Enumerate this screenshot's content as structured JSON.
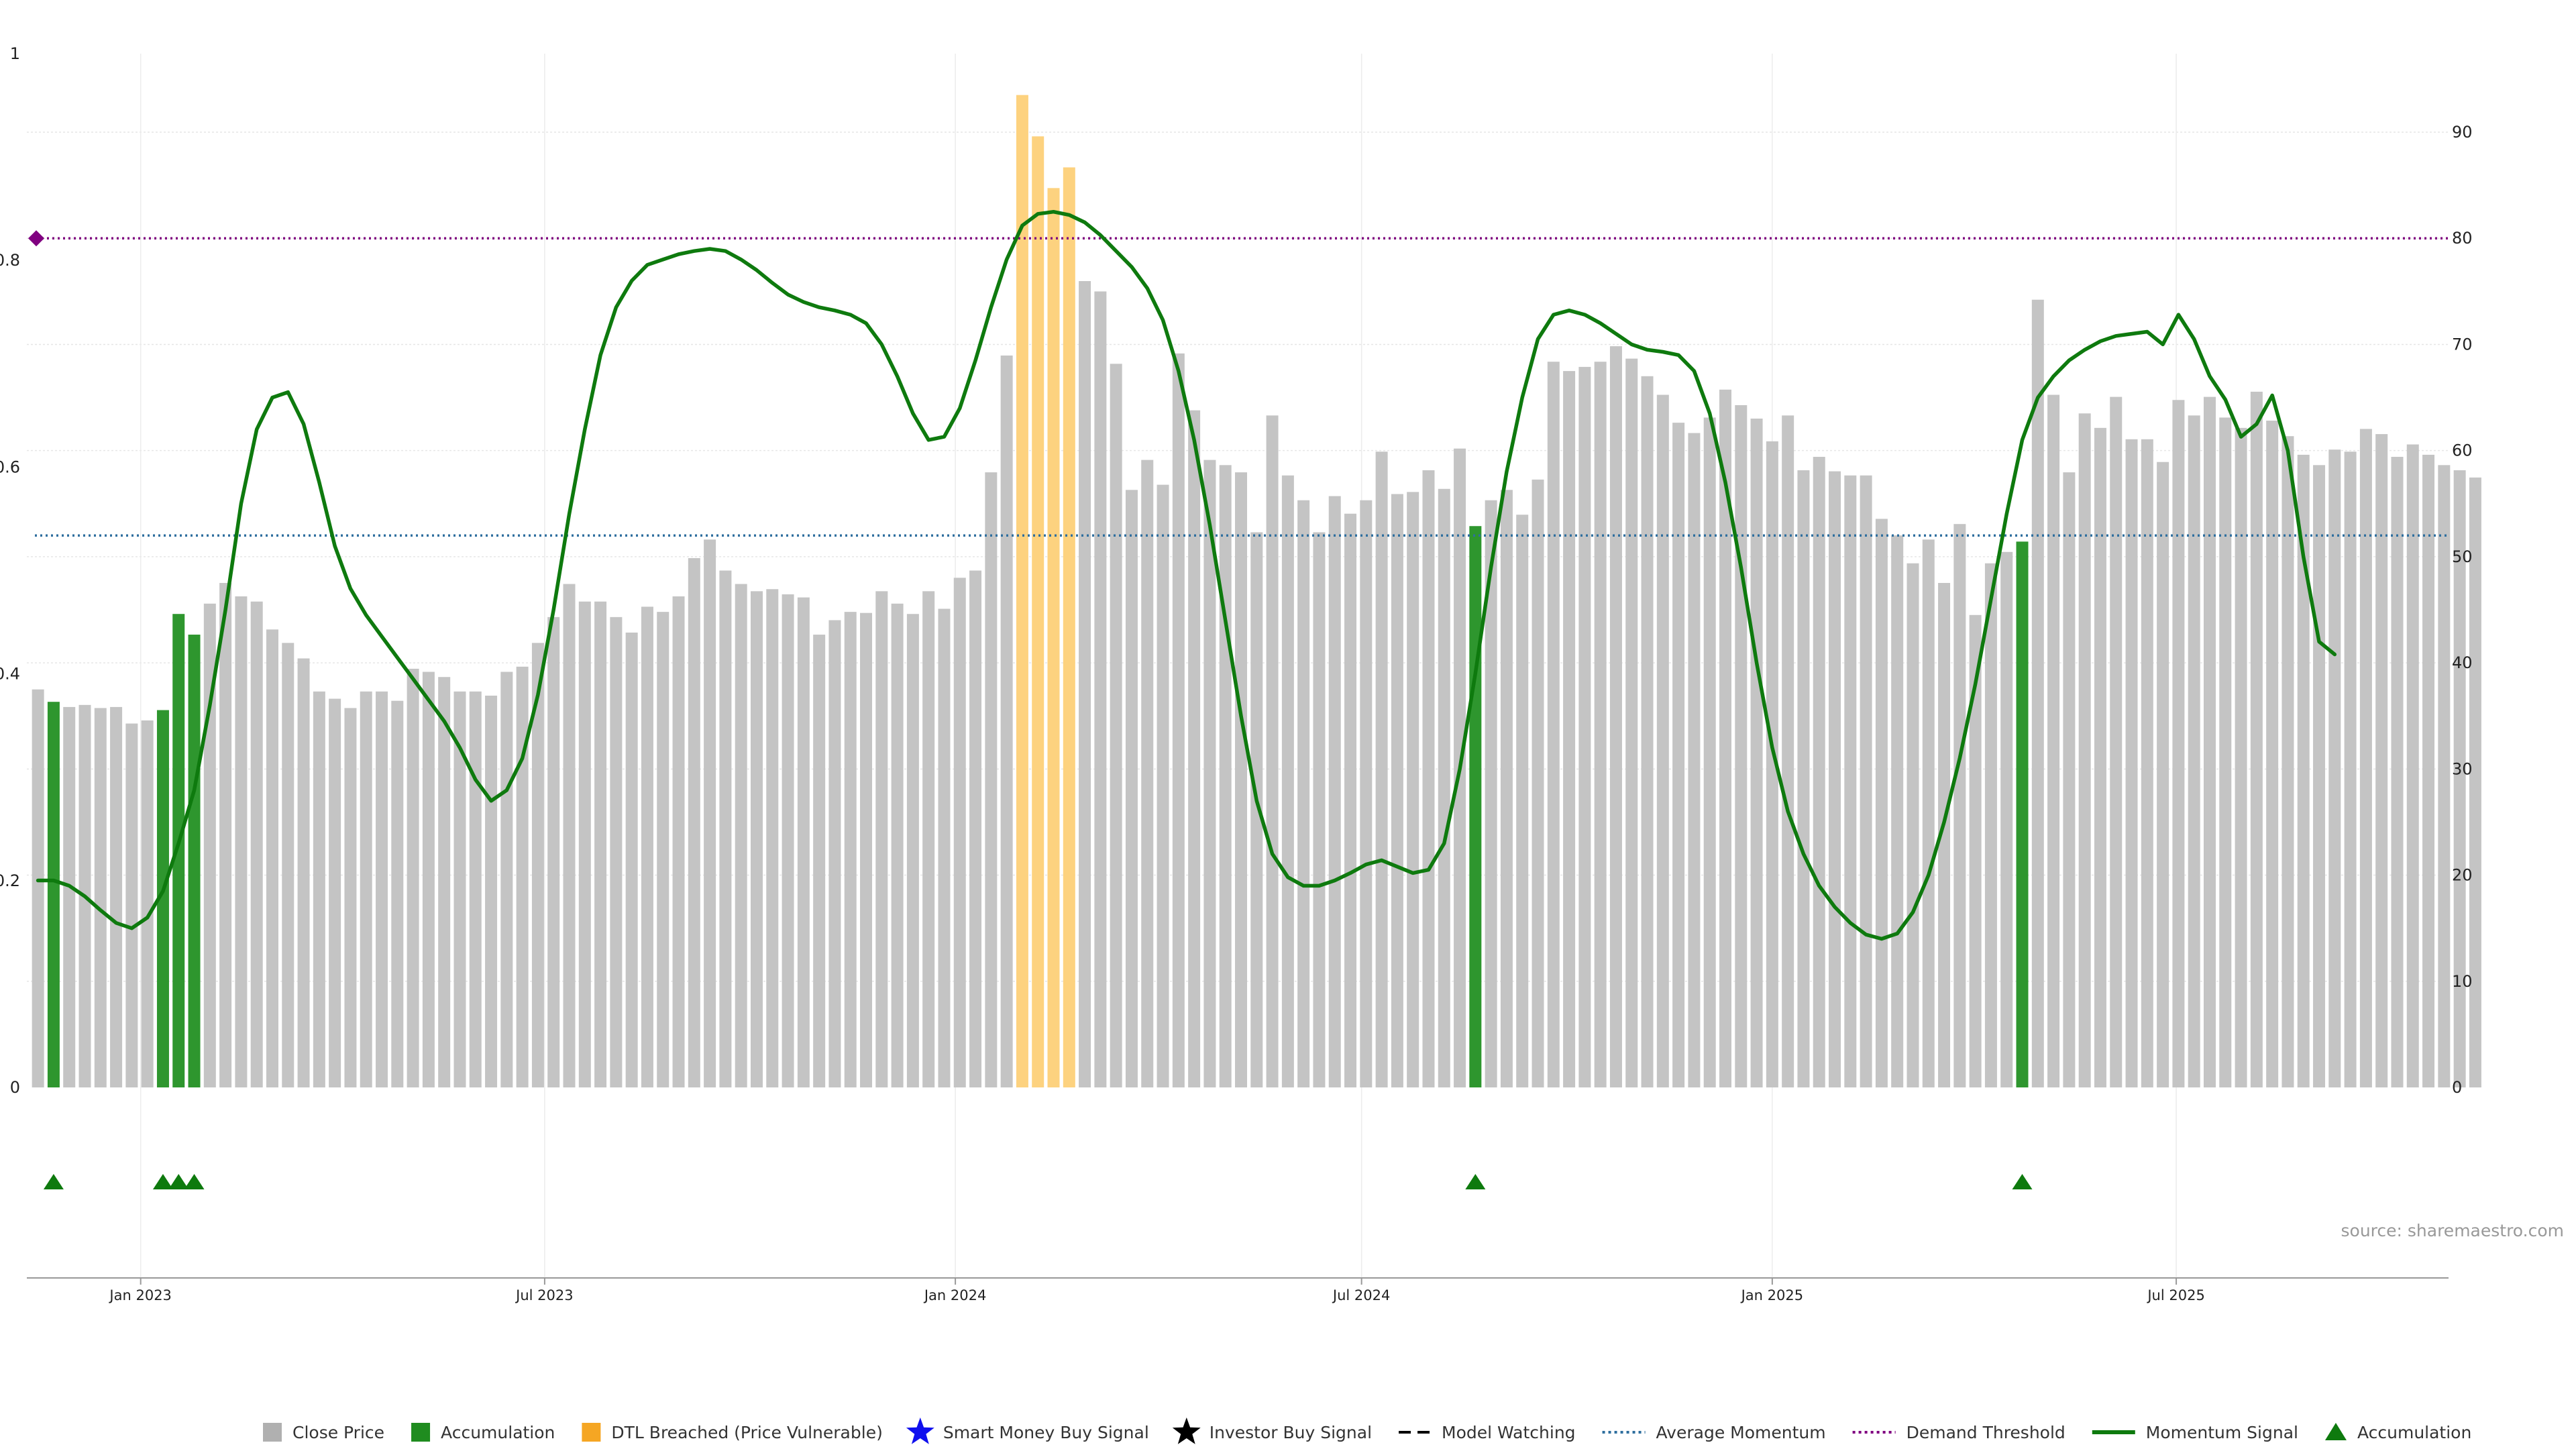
{
  "chart_data": {
    "type": "bar",
    "source": "source: sharemaestro.com",
    "left_axis": {
      "ticks": [
        "0",
        "0.2",
        "0.4",
        "0.6",
        "0.8",
        "1"
      ],
      "values": [
        0,
        0.2,
        0.4,
        0.6,
        0.8,
        1
      ],
      "ylim": [
        0,
        1
      ]
    },
    "right_axis": {
      "ticks": [
        "0",
        "10",
        "20",
        "30",
        "40",
        "50",
        "60",
        "70",
        "80",
        "90"
      ],
      "values": [
        0,
        10,
        20,
        30,
        40,
        50,
        60,
        70,
        80,
        90
      ],
      "ylim": [
        0,
        100
      ]
    },
    "x_axis": {
      "range": [
        "2022-11-11",
        "2025-10-31"
      ],
      "ticks": [
        {
          "label": "Jan 2023",
          "date": "2023-01-01"
        },
        {
          "label": "Jul 2023",
          "date": "2023-07-01"
        },
        {
          "label": "Jan 2024",
          "date": "2024-01-01"
        },
        {
          "label": "Jul 2024",
          "date": "2024-07-01"
        },
        {
          "label": "Jan 2025",
          "date": "2025-01-01"
        },
        {
          "label": "Jul 2025",
          "date": "2025-07-01"
        }
      ]
    },
    "first_bar_date": "2022-11-16",
    "bar_interval_days": 7,
    "bar_values": [
      0.385,
      0.373,
      0.368,
      0.37,
      0.367,
      0.368,
      0.352,
      0.355,
      0.365,
      0.458,
      0.438,
      0.468,
      0.488,
      0.475,
      0.47,
      0.443,
      0.43,
      0.415,
      0.383,
      0.376,
      0.367,
      0.383,
      0.383,
      0.374,
      0.405,
      0.402,
      0.397,
      0.383,
      0.383,
      0.379,
      0.402,
      0.407,
      0.43,
      0.455,
      0.487,
      0.47,
      0.47,
      0.455,
      0.44,
      0.465,
      0.46,
      0.475,
      0.512,
      0.53,
      0.5,
      0.487,
      0.48,
      0.482,
      0.477,
      0.474,
      0.438,
      0.452,
      0.46,
      0.459,
      0.48,
      0.468,
      0.458,
      0.48,
      0.463,
      0.493,
      0.5,
      0.595,
      0.708,
      0.96,
      0.92,
      0.87,
      0.89,
      0.78,
      0.77,
      0.7,
      0.578,
      0.607,
      0.583,
      0.71,
      0.655,
      0.607,
      0.602,
      0.595,
      0.537,
      0.65,
      0.592,
      0.568,
      0.537,
      0.572,
      0.555,
      0.568,
      0.615,
      0.574,
      0.576,
      0.597,
      0.579,
      0.618,
      0.543,
      0.568,
      0.578,
      0.554,
      0.588,
      0.702,
      0.693,
      0.697,
      0.702,
      0.717,
      0.705,
      0.688,
      0.67,
      0.643,
      0.633,
      0.648,
      0.675,
      0.66,
      0.647,
      0.625,
      0.65,
      0.597,
      0.61,
      0.596,
      0.592,
      0.592,
      0.55,
      0.534,
      0.507,
      0.53,
      0.488,
      0.545,
      0.457,
      0.507,
      0.518,
      0.528,
      0.762,
      0.67,
      0.595,
      0.652,
      0.638,
      0.668,
      0.627,
      0.627,
      0.605,
      0.665,
      0.65,
      0.668,
      0.648,
      0.638,
      0.673,
      0.645,
      0.63,
      0.612,
      0.602,
      0.617,
      0.615,
      0.637,
      0.632,
      0.61,
      0.622,
      0.612,
      0.602,
      0.597,
      0.59
    ],
    "accumulation_bars": [
      1,
      8,
      9,
      10,
      92,
      127
    ],
    "dtl_bars": [
      63,
      64,
      65,
      66
    ],
    "accumulation_markers": [
      1,
      8,
      9,
      10,
      92,
      127
    ],
    "average_momentum": 52,
    "demand_threshold": 80,
    "momentum_signal": [
      [
        0,
        19.5
      ],
      [
        1,
        19.5
      ],
      [
        2,
        19
      ],
      [
        3,
        18
      ],
      [
        4,
        16.7
      ],
      [
        5,
        15.5
      ],
      [
        6,
        15
      ],
      [
        7,
        16
      ],
      [
        8,
        18.5
      ],
      [
        9,
        23
      ],
      [
        10,
        28
      ],
      [
        11,
        36
      ],
      [
        12,
        45
      ],
      [
        13,
        55
      ],
      [
        14,
        62
      ],
      [
        15,
        65
      ],
      [
        16,
        65.5
      ],
      [
        17,
        62.5
      ],
      [
        18,
        57
      ],
      [
        19,
        51
      ],
      [
        20,
        47
      ],
      [
        21,
        44.5
      ],
      [
        22,
        42.5
      ],
      [
        23,
        40.5
      ],
      [
        24,
        38.5
      ],
      [
        25,
        36.5
      ],
      [
        26,
        34.5
      ],
      [
        27,
        32
      ],
      [
        28,
        29
      ],
      [
        29,
        27
      ],
      [
        30,
        28
      ],
      [
        31,
        31
      ],
      [
        32,
        37
      ],
      [
        33,
        45
      ],
      [
        34,
        54
      ],
      [
        35,
        62
      ],
      [
        36,
        69
      ],
      [
        37,
        73.5
      ],
      [
        38,
        76
      ],
      [
        39,
        77.5
      ],
      [
        40,
        78
      ],
      [
        41,
        78.5
      ],
      [
        42,
        78.8
      ],
      [
        43,
        79
      ],
      [
        44,
        78.8
      ],
      [
        45,
        78
      ],
      [
        46,
        77
      ],
      [
        47,
        75.8
      ],
      [
        48,
        74.7
      ],
      [
        49,
        74
      ],
      [
        50,
        73.5
      ],
      [
        51,
        73.2
      ],
      [
        52,
        72.8
      ],
      [
        53,
        72
      ],
      [
        54,
        70
      ],
      [
        55,
        67
      ],
      [
        56,
        63.5
      ],
      [
        57,
        61
      ],
      [
        58,
        61.3
      ],
      [
        59,
        64
      ],
      [
        60,
        68.5
      ],
      [
        61,
        73.5
      ],
      [
        62,
        78
      ],
      [
        63,
        81.2
      ],
      [
        64,
        82.3
      ],
      [
        65,
        82.5
      ],
      [
        66,
        82.2
      ],
      [
        67,
        81.5
      ],
      [
        68,
        80.3
      ],
      [
        69,
        78.8
      ],
      [
        70,
        77.3
      ],
      [
        71,
        75.3
      ],
      [
        72,
        72.3
      ],
      [
        73,
        67.5
      ],
      [
        74,
        61
      ],
      [
        75,
        53
      ],
      [
        76,
        44
      ],
      [
        77,
        35
      ],
      [
        78,
        27
      ],
      [
        79,
        22
      ],
      [
        80,
        19.8
      ],
      [
        81,
        19
      ],
      [
        82,
        19
      ],
      [
        83,
        19.5
      ],
      [
        84,
        20.2
      ],
      [
        85,
        21
      ],
      [
        86,
        21.4
      ],
      [
        87,
        20.8
      ],
      [
        88,
        20.2
      ],
      [
        89,
        20.5
      ],
      [
        90,
        23
      ],
      [
        91,
        30
      ],
      [
        92,
        39
      ],
      [
        93,
        49
      ],
      [
        94,
        58
      ],
      [
        95,
        65
      ],
      [
        96,
        70.5
      ],
      [
        97,
        72.8
      ],
      [
        98,
        73.2
      ],
      [
        99,
        72.8
      ],
      [
        100,
        72
      ],
      [
        101,
        71
      ],
      [
        102,
        70
      ],
      [
        103,
        69.5
      ],
      [
        104,
        69.3
      ],
      [
        105,
        69
      ],
      [
        106,
        67.5
      ],
      [
        107,
        63.5
      ],
      [
        108,
        57
      ],
      [
        109,
        49
      ],
      [
        110,
        40
      ],
      [
        111,
        32
      ],
      [
        112,
        26
      ],
      [
        113,
        22
      ],
      [
        114,
        19
      ],
      [
        115,
        17
      ],
      [
        116,
        15.5
      ],
      [
        117,
        14.4
      ],
      [
        118,
        14
      ],
      [
        119,
        14.5
      ],
      [
        120,
        16.5
      ],
      [
        121,
        20
      ],
      [
        122,
        25
      ],
      [
        123,
        31
      ],
      [
        124,
        38
      ],
      [
        125,
        46
      ],
      [
        126,
        54
      ],
      [
        127,
        61
      ],
      [
        128,
        65
      ],
      [
        129,
        67
      ],
      [
        130,
        68.5
      ],
      [
        131,
        69.5
      ],
      [
        132,
        70.3
      ],
      [
        133,
        70.8
      ],
      [
        134,
        71
      ],
      [
        135,
        71.2
      ],
      [
        136,
        70
      ],
      [
        137,
        72.8
      ],
      [
        138,
        70.5
      ],
      [
        139,
        67
      ],
      [
        140,
        64.8
      ],
      [
        141,
        61.3
      ],
      [
        142,
        62.5
      ],
      [
        143,
        65.2
      ],
      [
        144,
        60
      ],
      [
        145,
        50
      ],
      [
        146,
        42
      ],
      [
        147,
        40.8
      ]
    ]
  },
  "legend": [
    {
      "key": "close",
      "label": "Close Price",
      "symbol": "square",
      "color": "#b0b0b0"
    },
    {
      "key": "accum",
      "label": "Accumulation",
      "symbol": "square",
      "color": "#1f8c1f"
    },
    {
      "key": "dtl",
      "label": "DTL Breached (Price Vulnerable)",
      "symbol": "square",
      "color": "#f5a623"
    },
    {
      "key": "smart",
      "label": "Smart Money Buy Signal",
      "symbol": "star",
      "color": "#1010ee"
    },
    {
      "key": "investor",
      "label": "Investor Buy Signal",
      "symbol": "star",
      "color": "#000000"
    },
    {
      "key": "watch",
      "label": "Model Watching",
      "symbol": "dash",
      "color": "#000000"
    },
    {
      "key": "avg",
      "label": "Average Momentum",
      "symbol": "dotted",
      "color": "#2f6f9f"
    },
    {
      "key": "demand",
      "label": "Demand Threshold",
      "symbol": "dotted",
      "color": "#800080"
    },
    {
      "key": "momentum",
      "label": "Momentum Signal",
      "symbol": "line",
      "color": "#0e7a0e"
    },
    {
      "key": "accum_marker",
      "label": "Accumulation",
      "symbol": "triangle",
      "color": "#0e7a0e"
    }
  ],
  "colors": {
    "close": "#c4c4c4",
    "accumulation": "#2e962e",
    "dtl": "#fdd27f",
    "momentum": "#0e7a0e",
    "average": "#2f6f9f",
    "demand": "#800080"
  }
}
